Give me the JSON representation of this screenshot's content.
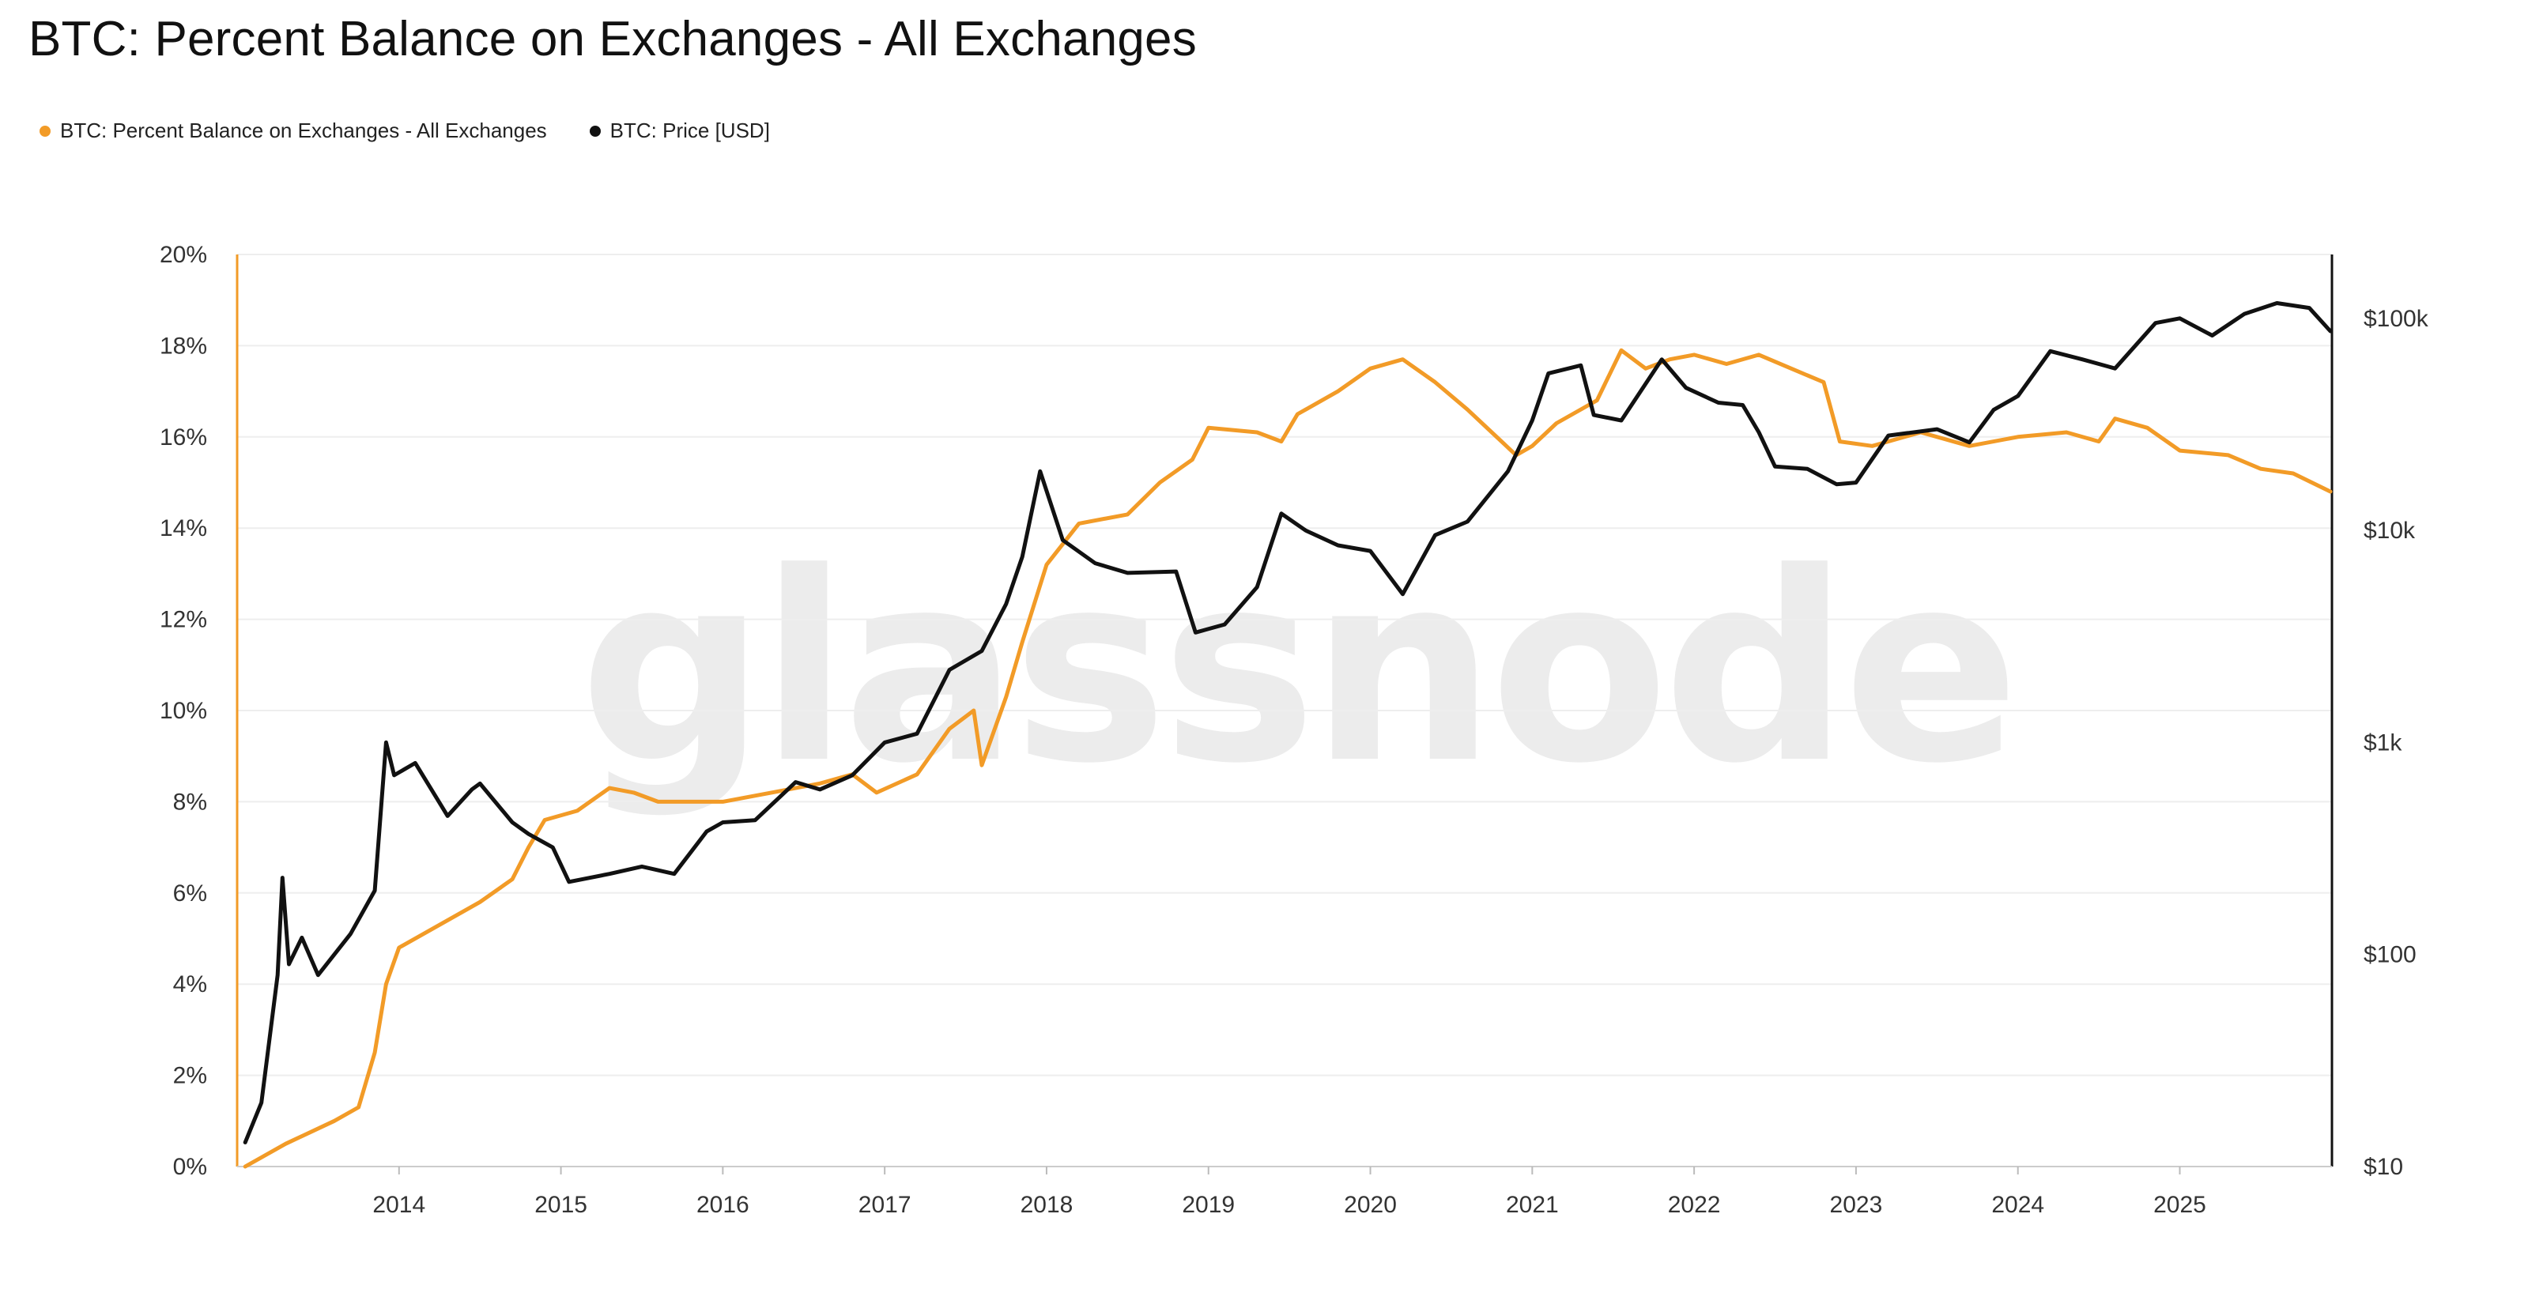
{
  "colors": {
    "balance": "#f29b27",
    "price": "#111111",
    "grid": "#eeeeee",
    "axis": "#111111"
  },
  "watermark": "glassnode",
  "chart_data": {
    "type": "line",
    "title": "BTC: Percent Balance on Exchanges - All Exchanges",
    "legend_position": "top-left",
    "grid": true,
    "x_ticks": [
      "2014",
      "2015",
      "2016",
      "2017",
      "2018",
      "2019",
      "2020",
      "2021",
      "2022",
      "2023",
      "2024",
      "2025"
    ],
    "xlim": [
      2013.0,
      2025.94
    ],
    "y_left": {
      "ticks": [
        "0%",
        "2%",
        "4%",
        "6%",
        "8%",
        "10%",
        "12%",
        "14%",
        "16%",
        "18%",
        "20%"
      ],
      "range": [
        0,
        20
      ],
      "unit": "%"
    },
    "y_right": {
      "ticks": [
        "$10",
        "$100",
        "$1k",
        "$10k",
        "$100k"
      ],
      "tick_values": [
        10,
        100,
        1000,
        10000,
        100000
      ],
      "scale": "log",
      "range": [
        10,
        200000
      ]
    },
    "series": [
      {
        "name": "BTC: Percent Balance on Exchanges - All Exchanges",
        "axis": "left",
        "color": "#f29b27",
        "points": [
          [
            2013.05,
            0.0
          ],
          [
            2013.3,
            0.5
          ],
          [
            2013.6,
            1.0
          ],
          [
            2013.75,
            1.3
          ],
          [
            2013.85,
            2.5
          ],
          [
            2013.92,
            4.0
          ],
          [
            2014.0,
            4.8
          ],
          [
            2014.3,
            5.4
          ],
          [
            2014.5,
            5.8
          ],
          [
            2014.7,
            6.3
          ],
          [
            2014.8,
            7.0
          ],
          [
            2014.9,
            7.6
          ],
          [
            2015.1,
            7.8
          ],
          [
            2015.3,
            8.3
          ],
          [
            2015.45,
            8.2
          ],
          [
            2015.6,
            8.0
          ],
          [
            2016.0,
            8.0
          ],
          [
            2016.3,
            8.2
          ],
          [
            2016.6,
            8.4
          ],
          [
            2016.8,
            8.6
          ],
          [
            2016.95,
            8.2
          ],
          [
            2017.2,
            8.6
          ],
          [
            2017.4,
            9.6
          ],
          [
            2017.55,
            10.0
          ],
          [
            2017.6,
            8.8
          ],
          [
            2017.75,
            10.3
          ],
          [
            2017.85,
            11.5
          ],
          [
            2018.0,
            13.2
          ],
          [
            2018.2,
            14.1
          ],
          [
            2018.5,
            14.3
          ],
          [
            2018.7,
            15.0
          ],
          [
            2018.9,
            15.5
          ],
          [
            2019.0,
            16.2
          ],
          [
            2019.3,
            16.1
          ],
          [
            2019.45,
            15.9
          ],
          [
            2019.55,
            16.5
          ],
          [
            2019.8,
            17.0
          ],
          [
            2020.0,
            17.5
          ],
          [
            2020.2,
            17.7
          ],
          [
            2020.4,
            17.2
          ],
          [
            2020.6,
            16.6
          ],
          [
            2020.75,
            16.1
          ],
          [
            2020.9,
            15.6
          ],
          [
            2021.0,
            15.8
          ],
          [
            2021.15,
            16.3
          ],
          [
            2021.4,
            16.8
          ],
          [
            2021.55,
            17.9
          ],
          [
            2021.7,
            17.5
          ],
          [
            2021.85,
            17.7
          ],
          [
            2022.0,
            17.8
          ],
          [
            2022.2,
            17.6
          ],
          [
            2022.4,
            17.8
          ],
          [
            2022.6,
            17.5
          ],
          [
            2022.8,
            17.2
          ],
          [
            2022.9,
            15.9
          ],
          [
            2023.1,
            15.8
          ],
          [
            2023.4,
            16.1
          ],
          [
            2023.7,
            15.8
          ],
          [
            2024.0,
            16.0
          ],
          [
            2024.3,
            16.1
          ],
          [
            2024.5,
            15.9
          ],
          [
            2024.6,
            16.4
          ],
          [
            2024.8,
            16.2
          ],
          [
            2025.0,
            15.7
          ],
          [
            2025.3,
            15.6
          ],
          [
            2025.5,
            15.3
          ],
          [
            2025.7,
            15.2
          ],
          [
            2025.93,
            14.8
          ]
        ]
      },
      {
        "name": "BTC: Price [USD]",
        "axis": "right",
        "color": "#111111",
        "points": [
          [
            2013.05,
            13
          ],
          [
            2013.15,
            20
          ],
          [
            2013.25,
            80
          ],
          [
            2013.28,
            230
          ],
          [
            2013.32,
            90
          ],
          [
            2013.4,
            120
          ],
          [
            2013.5,
            80
          ],
          [
            2013.6,
            100
          ],
          [
            2013.7,
            125
          ],
          [
            2013.85,
            200
          ],
          [
            2013.92,
            1000
          ],
          [
            2013.97,
            700
          ],
          [
            2014.1,
            800
          ],
          [
            2014.3,
            450
          ],
          [
            2014.45,
            600
          ],
          [
            2014.5,
            640
          ],
          [
            2014.7,
            420
          ],
          [
            2014.8,
            370
          ],
          [
            2014.95,
            320
          ],
          [
            2015.05,
            220
          ],
          [
            2015.3,
            240
          ],
          [
            2015.5,
            260
          ],
          [
            2015.7,
            240
          ],
          [
            2015.9,
            380
          ],
          [
            2016.0,
            420
          ],
          [
            2016.2,
            430
          ],
          [
            2016.45,
            650
          ],
          [
            2016.6,
            600
          ],
          [
            2016.8,
            700
          ],
          [
            2017.0,
            1000
          ],
          [
            2017.2,
            1100
          ],
          [
            2017.4,
            2200
          ],
          [
            2017.6,
            2700
          ],
          [
            2017.75,
            4500
          ],
          [
            2017.85,
            7500
          ],
          [
            2017.96,
            19000
          ],
          [
            2018.1,
            9000
          ],
          [
            2018.3,
            7000
          ],
          [
            2018.5,
            6300
          ],
          [
            2018.8,
            6400
          ],
          [
            2018.92,
            3300
          ],
          [
            2019.1,
            3600
          ],
          [
            2019.3,
            5400
          ],
          [
            2019.45,
            12000
          ],
          [
            2019.6,
            10000
          ],
          [
            2019.8,
            8500
          ],
          [
            2020.0,
            8000
          ],
          [
            2020.2,
            5000
          ],
          [
            2020.4,
            9500
          ],
          [
            2020.6,
            11000
          ],
          [
            2020.85,
            19000
          ],
          [
            2021.0,
            33000
          ],
          [
            2021.1,
            55000
          ],
          [
            2021.3,
            60000
          ],
          [
            2021.38,
            35000
          ],
          [
            2021.55,
            33000
          ],
          [
            2021.8,
            64000
          ],
          [
            2021.95,
            47000
          ],
          [
            2022.15,
            40000
          ],
          [
            2022.3,
            39000
          ],
          [
            2022.4,
            29000
          ],
          [
            2022.5,
            20000
          ],
          [
            2022.7,
            19500
          ],
          [
            2022.88,
            16500
          ],
          [
            2023.0,
            16800
          ],
          [
            2023.2,
            28000
          ],
          [
            2023.5,
            30000
          ],
          [
            2023.7,
            26000
          ],
          [
            2023.85,
            37000
          ],
          [
            2024.0,
            43000
          ],
          [
            2024.2,
            70000
          ],
          [
            2024.4,
            64000
          ],
          [
            2024.6,
            58000
          ],
          [
            2024.85,
            95000
          ],
          [
            2025.0,
            100000
          ],
          [
            2025.2,
            83000
          ],
          [
            2025.4,
            105000
          ],
          [
            2025.6,
            118000
          ],
          [
            2025.8,
            112000
          ],
          [
            2025.93,
            87000
          ]
        ]
      }
    ]
  }
}
